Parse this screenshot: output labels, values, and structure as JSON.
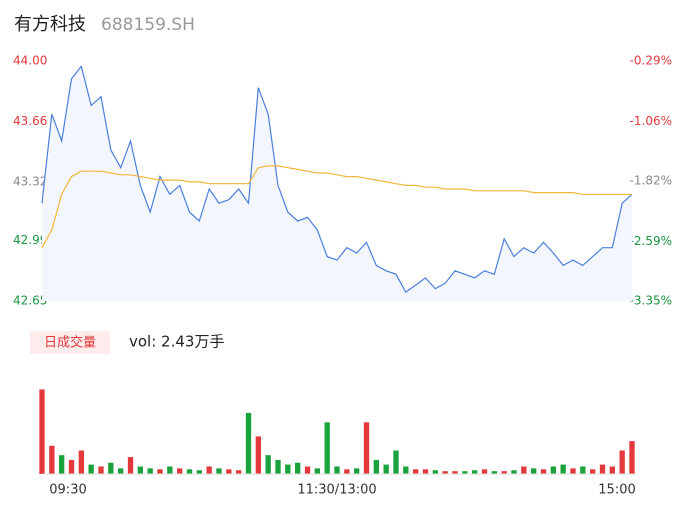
{
  "chart_data": {
    "type": "line",
    "title": "有方科技",
    "subtitle": "688159.SH",
    "xlim": [
      0,
      240
    ],
    "xticks": [
      {
        "value": 0,
        "label": "09:30"
      },
      {
        "value": 120,
        "label": "11:30/13:00"
      },
      {
        "value": 240,
        "label": "15:00"
      }
    ],
    "x": [
      0,
      4,
      8,
      12,
      16,
      20,
      24,
      28,
      32,
      36,
      40,
      44,
      48,
      52,
      56,
      60,
      64,
      68,
      72,
      76,
      80,
      84,
      88,
      92,
      96,
      100,
      104,
      108,
      112,
      116,
      120,
      124,
      128,
      132,
      136,
      140,
      144,
      148,
      152,
      156,
      160,
      164,
      168,
      172,
      176,
      180,
      184,
      188,
      192,
      196,
      200,
      204,
      208,
      212,
      216,
      220,
      224,
      228,
      232,
      236,
      240
    ],
    "ylim": [
      42.65,
      44.0
    ],
    "yticks": [
      {
        "value": 44.0,
        "label": "44.00"
      },
      43.66,
      43.32,
      42.99,
      42.65
    ],
    "ytick_colors": [
      "#e4393c",
      "#e4393c",
      "#888888",
      "#1a9641",
      "#1a9641"
    ],
    "y2lim": [
      -3.35,
      -0.29
    ],
    "y2ticks": [
      {
        "value": -0.29,
        "label": "-0.29%"
      },
      {
        "value": -1.06,
        "label": "-1.06%"
      },
      {
        "value": -1.82,
        "label": "-1.82%"
      },
      {
        "value": -2.59,
        "label": "-2.59%"
      },
      {
        "value": -3.35,
        "label": "-3.35%"
      }
    ],
    "price": {
      "color": "#4a7fdc",
      "fill": "#f3f6fd",
      "values": [
        43.2,
        43.7,
        43.55,
        43.9,
        43.97,
        43.75,
        43.8,
        43.5,
        43.4,
        43.55,
        43.3,
        43.15,
        43.35,
        43.25,
        43.3,
        43.15,
        43.1,
        43.28,
        43.2,
        43.22,
        43.28,
        43.2,
        43.85,
        43.7,
        43.3,
        43.15,
        43.1,
        43.12,
        43.05,
        42.9,
        42.88,
        42.95,
        42.92,
        42.98,
        42.85,
        42.82,
        42.8,
        42.7,
        42.74,
        42.78,
        42.72,
        42.75,
        42.82,
        42.8,
        42.78,
        42.82,
        42.8,
        43.0,
        42.9,
        42.95,
        42.92,
        42.98,
        42.92,
        42.85,
        42.88,
        42.85,
        42.9,
        42.95,
        42.95,
        43.2,
        43.25
      ]
    },
    "average": {
      "color": "#f0b73a",
      "values": [
        42.95,
        43.05,
        43.25,
        43.35,
        43.38,
        43.38,
        43.38,
        43.37,
        43.36,
        43.36,
        43.35,
        43.34,
        43.33,
        43.33,
        43.33,
        43.32,
        43.32,
        43.31,
        43.31,
        43.31,
        43.31,
        43.31,
        43.4,
        43.41,
        43.41,
        43.4,
        43.39,
        43.38,
        43.37,
        43.37,
        43.36,
        43.35,
        43.35,
        43.34,
        43.33,
        43.32,
        43.31,
        43.3,
        43.3,
        43.29,
        43.29,
        43.28,
        43.28,
        43.28,
        43.27,
        43.27,
        43.27,
        43.27,
        43.27,
        43.27,
        43.26,
        43.26,
        43.26,
        43.26,
        43.26,
        43.25,
        43.25,
        43.25,
        43.25,
        43.25,
        43.25
      ]
    },
    "volume_label": "日成交量",
    "volume_text": "vol: 2.43万手",
    "volume_ylim": [
      0,
      100
    ],
    "volume_colors": {
      "up": "#e4393c",
      "down": "#1aa33c"
    },
    "volume": [
      90,
      30,
      20,
      15,
      25,
      10,
      8,
      12,
      6,
      18,
      8,
      6,
      5,
      8,
      6,
      5,
      4,
      8,
      6,
      5,
      4,
      65,
      40,
      20,
      15,
      10,
      12,
      8,
      6,
      55,
      8,
      5,
      6,
      55,
      15,
      10,
      25,
      8,
      5,
      5,
      4,
      3,
      3,
      3,
      4,
      5,
      3,
      3,
      4,
      8,
      6,
      5,
      8,
      10,
      6,
      8,
      5,
      10,
      8,
      25,
      35
    ]
  }
}
